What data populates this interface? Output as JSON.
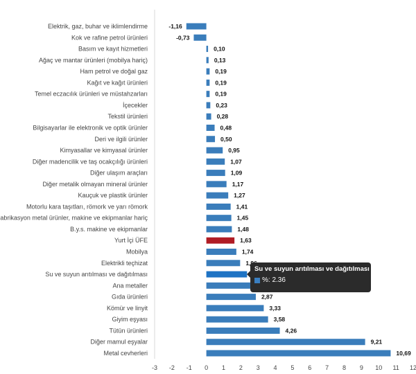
{
  "chart_data": {
    "type": "bar",
    "orientation": "horizontal",
    "categories": [
      "Elektrik, gaz, buhar ve iklimlendirme",
      "Kok ve rafine petrol ürünleri",
      "Basım ve kayıt hizmetleri",
      "Ağaç ve mantar ürünleri (mobilya hariç)",
      "Ham petrol ve doğal gaz",
      "Kağıt ve kağıt ürünleri",
      "Temel eczacılık ürünleri ve müstahzarları",
      "İçecekler",
      "Tekstil ürünleri",
      "Bilgisayarlar ile elektronik ve optik ürünler",
      "Deri ve ilgili ürünler",
      "Kimyasallar ve kimyasal ürünler",
      "Diğer madencilik ve taş ocakçılığı ürünleri",
      "Diğer ulaşım araçları",
      "Diğer metalik olmayan mineral ürünler",
      "Kauçuk ve plastik ürünler",
      "Motorlu kara taşıtları, römork ve yarı römork",
      "Fabrikasyon metal ürünler, makine ve ekipmanlar hariç",
      "B.y.s. makine ve ekipmanlar",
      "Yurt İçi ÜFE",
      "Mobilya",
      "Elektrikli teçhizat",
      "Su ve suyun arıtılması ve dağıtılması",
      "Ana metaller",
      "Gıda ürünleri",
      "Kömür ve linyit",
      "Giyim eşyası",
      "Tütün ürünleri",
      "Diğer mamul eşyalar",
      "Metal cevherleri"
    ],
    "values": [
      -1.16,
      -0.73,
      0.1,
      0.13,
      0.19,
      0.19,
      0.19,
      0.23,
      0.28,
      0.48,
      0.5,
      0.95,
      1.07,
      1.09,
      1.17,
      1.27,
      1.41,
      1.45,
      1.48,
      1.63,
      1.74,
      1.96,
      2.36,
      2.62,
      2.87,
      3.33,
      3.58,
      4.26,
      9.21,
      10.69
    ],
    "value_labels": [
      "-1,16",
      "-0,73",
      "0,10",
      "0,13",
      "0,19",
      "0,19",
      "0,19",
      "0,23",
      "0,28",
      "0,48",
      "0,50",
      "0,95",
      "1,07",
      "1,09",
      "1,17",
      "1,27",
      "1,41",
      "1,45",
      "1,48",
      "1,63",
      "1,74",
      "1,96",
      "2,36",
      "2,62",
      "2,87",
      "3,33",
      "3,58",
      "4,26",
      "9,21",
      "10,69"
    ],
    "highlight_index": 19,
    "hover_index": 22,
    "xlim": [
      -3,
      12
    ],
    "xticks": [
      -3,
      -2,
      -1,
      0,
      1,
      2,
      3,
      4,
      5,
      6,
      7,
      8,
      9,
      10,
      11,
      12
    ],
    "title": "",
    "xlabel": "",
    "ylabel": "",
    "grid": false,
    "colors": {
      "bar": "#3a7dbb",
      "highlight": "#b01c24",
      "hover": "#1e73c4"
    }
  },
  "tooltip": {
    "title": "Su ve suyun arıtılması ve dağıtılması",
    "series_label": "%: 2.36"
  }
}
